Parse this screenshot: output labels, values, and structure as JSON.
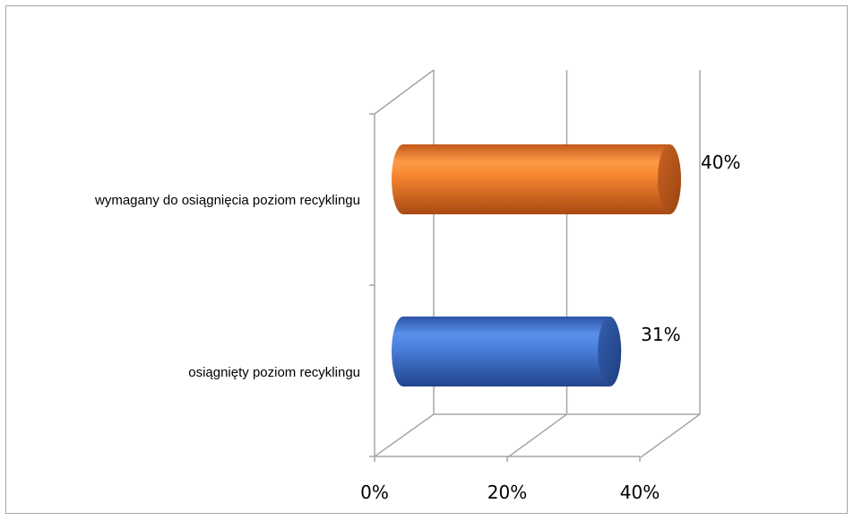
{
  "chart_data": {
    "type": "bar",
    "orientation": "horizontal",
    "style": "3d-cylinder",
    "categories": [
      "wymagany do osiągnięcia poziom recyklingu",
      "osiągnięty poziom recyklingu"
    ],
    "values": [
      40,
      31
    ],
    "data_labels": [
      "40%",
      "31%"
    ],
    "bar_colors": [
      "#f07f2a",
      "#3d72d1"
    ],
    "x_ticks": [
      "0%",
      "20%",
      "40%"
    ],
    "xlim": [
      0,
      40
    ],
    "grid": true,
    "legend": "none",
    "title": ""
  }
}
